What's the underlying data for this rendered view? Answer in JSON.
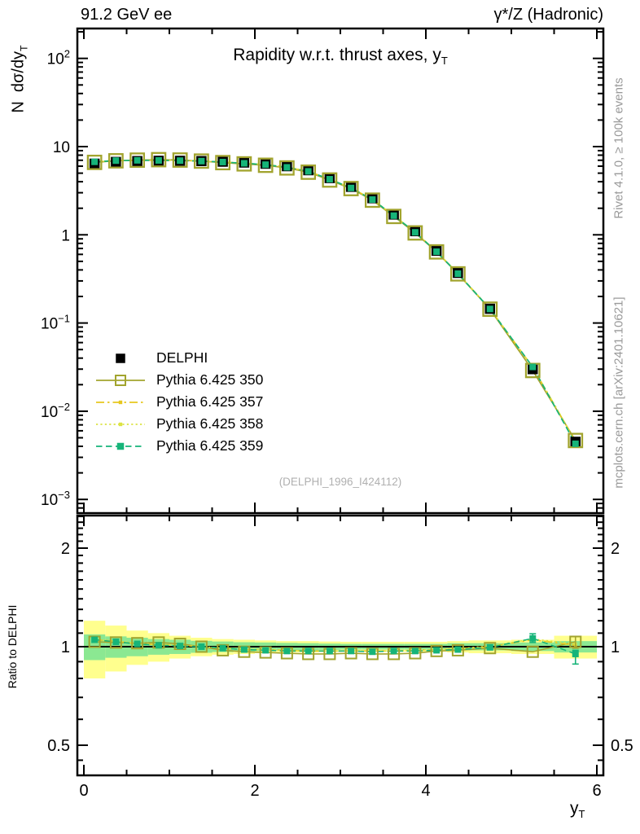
{
  "header": {
    "left": "91.2 GeV ee",
    "right": "γ*/Z (Hadronic)"
  },
  "titles": {
    "main": "Rapidity w.r.t. thrust axes, y",
    "main_sub": "T",
    "watermark": "(DELPHI_1996_I424112)",
    "xlabel": "y",
    "xlabel_sub": "T",
    "ylabel_main": "N  dσ/dy",
    "ylabel_main_sub": "T",
    "ylabel_ratio": "Ratio to DELPHI"
  },
  "sidebar": {
    "top": "Rivet 4.1.0, ≥ 100k events",
    "bottom": "mcplots.cern.ch [arXiv:2401.10621]"
  },
  "legend": {
    "items": [
      {
        "label": "DELPHI"
      },
      {
        "label": "Pythia 6.425 350"
      },
      {
        "label": "Pythia 6.425 357"
      },
      {
        "label": "Pythia 6.425 358"
      },
      {
        "label": "Pythia 6.425 359"
      }
    ]
  },
  "colors": {
    "delphi": "#000000",
    "pythia350": "#a2a42e",
    "pythia357": "#e7c71f",
    "pythia358": "#dce343",
    "pythia359": "#16b479",
    "band_yellow": "#ffff8e",
    "band_green": "#8be892",
    "side_text": "#9a9a9a",
    "watermark": "#b0b0b0"
  },
  "chart_data": {
    "type": "line",
    "title": "Rapidity w.r.t. thrust axes, y_T",
    "xlabel": "y_T",
    "ylabel_main": "N dσ/dy_T",
    "ylabel_ratio": "Ratio to DELPHI",
    "x": [
      0.125,
      0.375,
      0.625,
      0.875,
      1.125,
      1.375,
      1.625,
      1.875,
      2.125,
      2.375,
      2.625,
      2.875,
      3.125,
      3.375,
      3.625,
      3.875,
      4.125,
      4.375,
      4.75,
      5.25,
      5.75
    ],
    "series": [
      {
        "name": "DELPHI",
        "role": "data",
        "color": "#000000",
        "line": "none",
        "marker": "filled-square",
        "values": [
          6.4,
          6.7,
          6.85,
          6.9,
          6.9,
          6.85,
          6.75,
          6.6,
          6.4,
          6.0,
          5.4,
          4.4,
          3.5,
          2.6,
          1.7,
          1.1,
          0.66,
          0.37,
          0.145,
          0.03,
          0.0045
        ]
      },
      {
        "name": "Pythia 6.425 350",
        "role": "mc",
        "color": "#a2a42e",
        "line": "solid",
        "marker": "open-square",
        "ratio": [
          1.035,
          1.03,
          1.025,
          1.03,
          1.02,
          1.0,
          0.975,
          0.965,
          0.96,
          0.955,
          0.95,
          0.95,
          0.955,
          0.95,
          0.95,
          0.955,
          0.97,
          0.975,
          0.99,
          0.965,
          1.035
        ]
      },
      {
        "name": "Pythia 6.425 357",
        "role": "mc",
        "color": "#e7c71f",
        "line": "dashdot",
        "marker": "dot",
        "ratio": [
          1.05,
          1.04,
          1.02,
          1.015,
          1.01,
          1.0,
          0.99,
          0.98,
          0.98,
          0.975,
          0.97,
          0.97,
          0.97,
          0.97,
          0.97,
          0.975,
          0.98,
          0.985,
          1.0,
          1.05,
          1.01
        ]
      },
      {
        "name": "Pythia 6.425 358",
        "role": "mc",
        "color": "#dce343",
        "line": "dotted",
        "marker": "dot",
        "ratio": [
          1.05,
          1.04,
          1.025,
          1.015,
          1.01,
          1.0,
          0.99,
          0.985,
          0.98,
          0.975,
          0.97,
          0.97,
          0.97,
          0.97,
          0.97,
          0.975,
          0.98,
          0.985,
          1.005,
          1.055,
          1.02
        ]
      },
      {
        "name": "Pythia 6.425 359",
        "role": "mc",
        "color": "#16b479",
        "line": "dashed",
        "marker": "filled-square",
        "ratio": [
          1.05,
          1.035,
          1.02,
          1.01,
          1.005,
          1.0,
          0.99,
          0.98,
          0.975,
          0.97,
          0.97,
          0.97,
          0.97,
          0.965,
          0.97,
          0.97,
          0.975,
          0.98,
          0.995,
          1.06,
          0.95
        ]
      }
    ],
    "uncertainty_bands": {
      "bin_edges": [
        0,
        0.25,
        0.5,
        0.75,
        1.0,
        1.25,
        1.5,
        1.75,
        2.0,
        2.25,
        2.5,
        2.75,
        3.0,
        3.25,
        3.5,
        3.75,
        4.0,
        4.25,
        4.5,
        5.0,
        5.5,
        6.0
      ],
      "yellow_frac": [
        0.2,
        0.16,
        0.12,
        0.1,
        0.08,
        0.065,
        0.055,
        0.05,
        0.045,
        0.04,
        0.04,
        0.037,
        0.035,
        0.035,
        0.035,
        0.035,
        0.035,
        0.04,
        0.045,
        0.05,
        0.08
      ],
      "green_frac": [
        0.09,
        0.075,
        0.065,
        0.055,
        0.05,
        0.042,
        0.037,
        0.032,
        0.03,
        0.027,
        0.025,
        0.022,
        0.02,
        0.02,
        0.02,
        0.02,
        0.02,
        0.025,
        0.025,
        0.03,
        0.04
      ]
    },
    "error_bars": [
      {
        "series": "Pythia 6.425 350",
        "panel": "ratio",
        "x": 5.75,
        "lo": 0.99,
        "hi": 1.075
      },
      {
        "series": "Pythia 6.425 359",
        "panel": "ratio",
        "x": 5.25,
        "lo": 1.03,
        "hi": 1.095
      },
      {
        "series": "Pythia 6.425 359",
        "panel": "ratio",
        "x": 5.75,
        "lo": 0.885,
        "hi": 0.975
      }
    ],
    "axes": {
      "x": {
        "min": -0.08,
        "max": 6.08,
        "ticks": [
          0,
          2,
          4,
          6
        ],
        "tick_labels": [
          "0",
          "2",
          "4",
          "6"
        ],
        "minor_step": 0.5
      },
      "y_main": {
        "scale": "log",
        "min": 0.0007,
        "max": 220,
        "tick_labels": [
          {
            "v": 100,
            "base": "10",
            "exp": "2"
          },
          {
            "v": 10,
            "base": "10",
            "exp": ""
          },
          {
            "v": 1,
            "base": "1",
            "exp": ""
          },
          {
            "v": 0.1,
            "base": "10",
            "exp": "−1"
          },
          {
            "v": 0.01,
            "base": "10",
            "exp": "−2"
          },
          {
            "v": 0.001,
            "base": "10",
            "exp": "−3"
          }
        ]
      },
      "y_ratio": {
        "scale": "log",
        "min": 0.405,
        "max": 2.52,
        "ticks": [
          {
            "v": 2,
            "label": "2"
          },
          {
            "v": 1,
            "label": "1"
          },
          {
            "v": 0.5,
            "label": "0.5"
          }
        ]
      }
    }
  }
}
